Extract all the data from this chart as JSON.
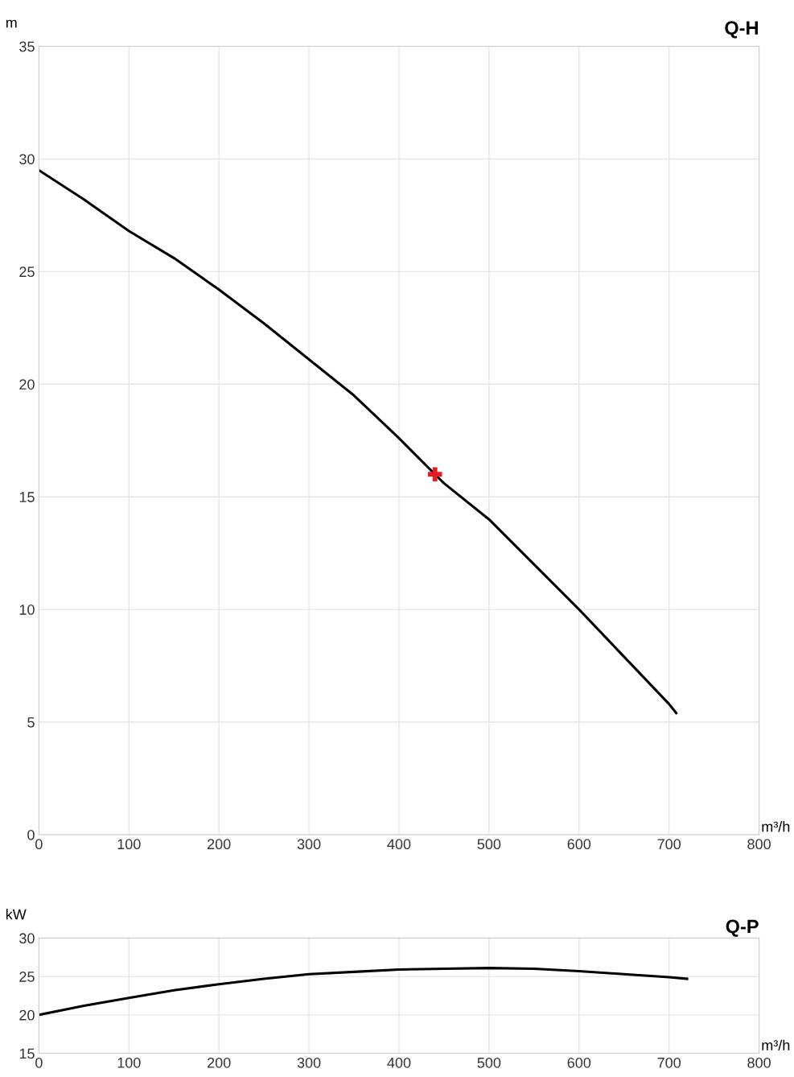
{
  "chart_data": [
    {
      "type": "line",
      "title": "Q-H",
      "ylabel": "m",
      "xlabel": "m³/h",
      "xlim": [
        0,
        800
      ],
      "xticks": [
        0,
        100,
        200,
        300,
        400,
        500,
        600,
        700,
        800
      ],
      "ylim": [
        0,
        35
      ],
      "yticks": [
        0,
        5,
        10,
        15,
        20,
        25,
        30,
        35
      ],
      "grid": true,
      "legend": false,
      "series": [
        {
          "color": "#000000",
          "x": [
            0,
            50,
            100,
            150,
            200,
            250,
            300,
            350,
            400,
            440,
            450,
            500,
            550,
            600,
            650,
            700,
            708
          ],
          "values": [
            29.5,
            28.2,
            26.8,
            25.6,
            24.2,
            22.7,
            21.1,
            19.5,
            17.6,
            16.0,
            15.6,
            14.0,
            12.0,
            10.0,
            7.9,
            5.8,
            5.4
          ]
        },
        {
          "type": "scatter",
          "marker": "cross",
          "color": "#e02020",
          "x": [
            440
          ],
          "values": [
            16.0
          ]
        }
      ]
    },
    {
      "type": "line",
      "title": "Q-P",
      "ylabel": "kW",
      "xlabel": "m³/h",
      "xlim": [
        0,
        800
      ],
      "xticks": [
        0,
        100,
        200,
        300,
        400,
        500,
        600,
        700,
        800
      ],
      "ylim": [
        15,
        30
      ],
      "yticks": [
        15,
        20,
        25,
        30
      ],
      "grid": true,
      "legend": false,
      "series": [
        {
          "color": "#000000",
          "x": [
            0,
            50,
            100,
            150,
            200,
            250,
            300,
            350,
            400,
            450,
            500,
            550,
            600,
            650,
            700,
            720
          ],
          "values": [
            20.0,
            21.2,
            22.2,
            23.2,
            24.0,
            24.7,
            25.3,
            25.6,
            25.9,
            26.0,
            26.1,
            26.0,
            25.7,
            25.3,
            24.9,
            24.7
          ]
        }
      ]
    }
  ]
}
